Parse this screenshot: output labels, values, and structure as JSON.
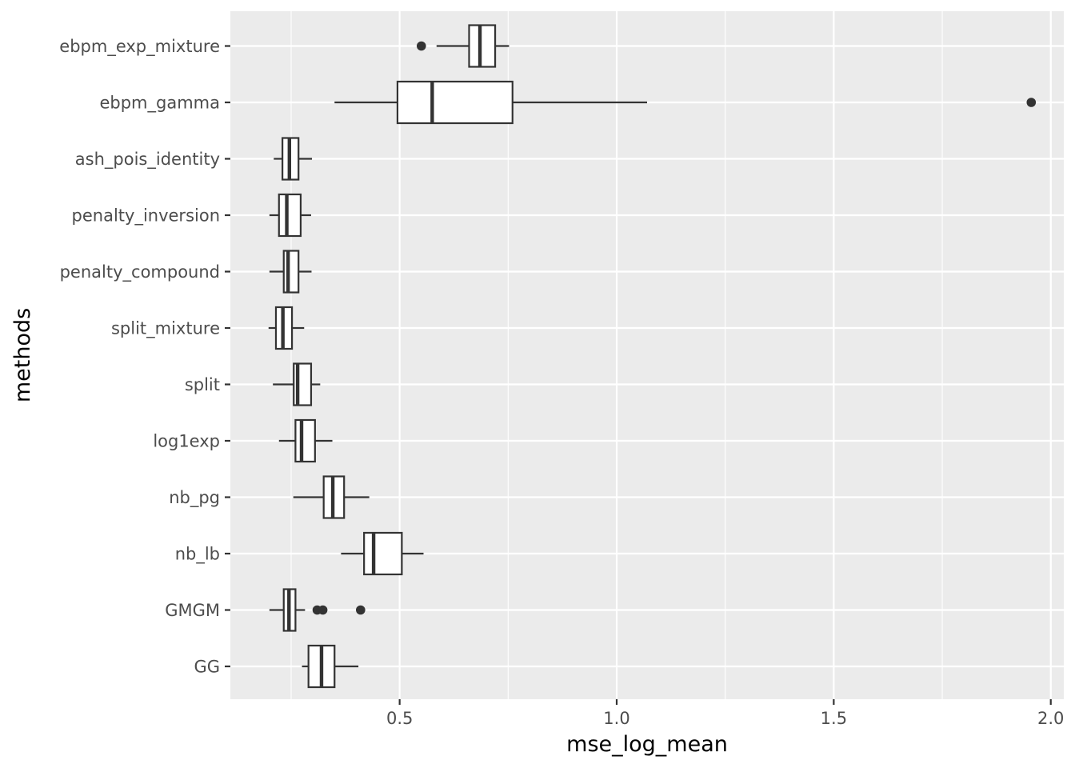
{
  "chart_data": {
    "type": "boxplot",
    "orientation": "horizontal",
    "title": "",
    "xlabel": "mse_log_mean",
    "ylabel": "methods",
    "xlim": [
      0.11,
      2.03
    ],
    "x_ticks": [
      0.5,
      1.0,
      1.5,
      2.0
    ],
    "x_tick_labels": [
      "0.5",
      "1.0",
      "1.5",
      "2.0"
    ],
    "grid": true,
    "colors": {
      "panel_bg": "#ebebeb",
      "grid_major": "#ffffff",
      "box_fill": "#ffffff",
      "box_stroke": "#333333",
      "outlier": "#333333",
      "tick_mark": "#333333"
    },
    "categories": [
      "ebpm_exp_mixture",
      "ebpm_gamma",
      "ash_pois_identity",
      "penalty_inversion",
      "penalty_compound",
      "split_mixture",
      "split",
      "log1exp",
      "nb_pg",
      "nb_lb",
      "GMGM",
      "GG"
    ],
    "boxes": [
      {
        "name": "ebpm_exp_mixture",
        "whisker_low": 0.585,
        "q1": 0.66,
        "median": 0.685,
        "q3": 0.72,
        "whisker_high": 0.752,
        "outliers": [
          0.55
        ]
      },
      {
        "name": "ebpm_gamma",
        "whisker_low": 0.35,
        "q1": 0.495,
        "median": 0.575,
        "q3": 0.76,
        "whisker_high": 1.07,
        "outliers": [
          1.955
        ]
      },
      {
        "name": "ash_pois_identity",
        "whisker_low": 0.21,
        "q1": 0.23,
        "median": 0.246,
        "q3": 0.267,
        "whisker_high": 0.298,
        "outliers": []
      },
      {
        "name": "penalty_inversion",
        "whisker_low": 0.2,
        "q1": 0.222,
        "median": 0.24,
        "q3": 0.272,
        "whisker_high": 0.296,
        "outliers": []
      },
      {
        "name": "penalty_compound",
        "whisker_low": 0.2,
        "q1": 0.233,
        "median": 0.243,
        "q3": 0.267,
        "whisker_high": 0.297,
        "outliers": []
      },
      {
        "name": "split_mixture",
        "whisker_low": 0.198,
        "q1": 0.215,
        "median": 0.231,
        "q3": 0.252,
        "whisker_high": 0.28,
        "outliers": []
      },
      {
        "name": "split",
        "whisker_low": 0.208,
        "q1": 0.256,
        "median": 0.265,
        "q3": 0.296,
        "whisker_high": 0.317,
        "outliers": []
      },
      {
        "name": "log1exp",
        "whisker_low": 0.222,
        "q1": 0.26,
        "median": 0.274,
        "q3": 0.305,
        "whisker_high": 0.345,
        "outliers": []
      },
      {
        "name": "nb_pg",
        "whisker_low": 0.255,
        "q1": 0.325,
        "median": 0.346,
        "q3": 0.372,
        "whisker_high": 0.43,
        "outliers": []
      },
      {
        "name": "nb_lb",
        "whisker_low": 0.365,
        "q1": 0.418,
        "median": 0.44,
        "q3": 0.505,
        "whisker_high": 0.555,
        "outliers": []
      },
      {
        "name": "GMGM",
        "whisker_low": 0.2,
        "q1": 0.233,
        "median": 0.245,
        "q3": 0.26,
        "whisker_high": 0.282,
        "outliers": [
          0.31,
          0.323,
          0.41
        ]
      },
      {
        "name": "GG",
        "whisker_low": 0.275,
        "q1": 0.29,
        "median": 0.32,
        "q3": 0.35,
        "whisker_high": 0.405,
        "outliers": []
      }
    ]
  }
}
